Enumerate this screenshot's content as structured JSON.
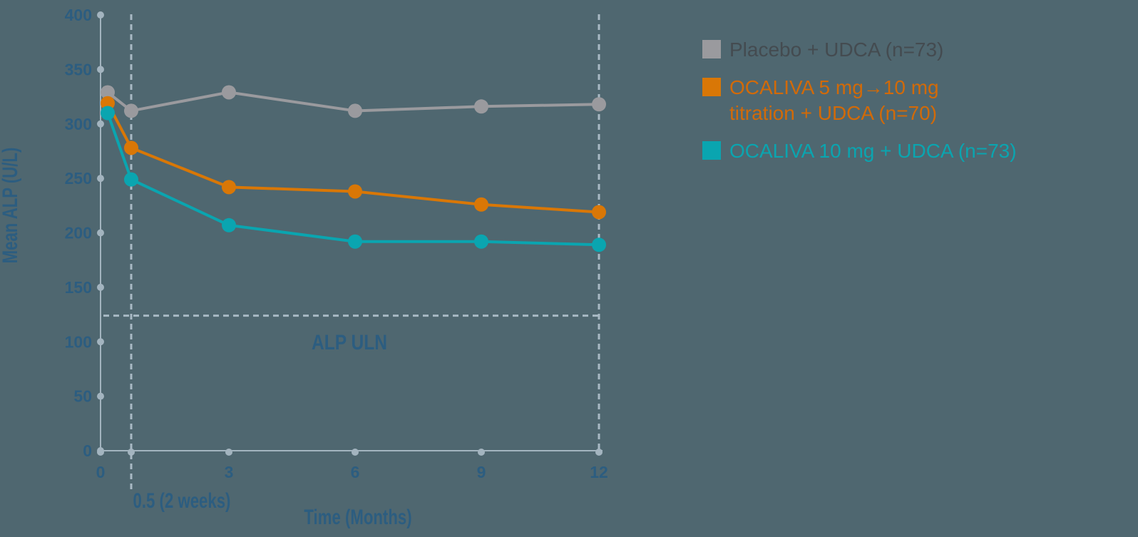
{
  "colors": {
    "background": "#4f6770",
    "axis": "#a3b4bf",
    "tick_text": "#2c5d80",
    "placebo": "#9a9a9e",
    "titration": "#d97706",
    "ten_mg": "#0aa5b0",
    "placebo_text": "#444b50"
  },
  "chart_data": {
    "type": "line",
    "title": "",
    "xlabel": "Time (Months)",
    "ylabel": "Mean ALP (U/L)",
    "ylim": [
      0,
      400
    ],
    "y_ticks": [
      "0",
      "50",
      "100",
      "150",
      "200",
      "250",
      "300",
      "350",
      "400"
    ],
    "x_ticks": [
      "0",
      "3",
      "6",
      "9",
      "12"
    ],
    "x": [
      0.25,
      0.5,
      3,
      6,
      9,
      12
    ],
    "annotations": {
      "week2_label": "0.5 (2 weeks)",
      "uln_label": "ALP ULN",
      "uln_value": 124
    },
    "legend_position": "right",
    "series": [
      {
        "name": "Placebo + UDCA (n=73)",
        "values": [
          329,
          312,
          329,
          312,
          316,
          318
        ]
      },
      {
        "name": "OCALIVA 5 mg→10 mg titration + UDCA (n=70)",
        "values": [
          319,
          278,
          242,
          238,
          226,
          219
        ]
      },
      {
        "name": "OCALIVA 10 mg + UDCA (n=73)",
        "values": [
          310,
          249,
          207,
          192,
          192,
          189
        ]
      }
    ]
  },
  "legend": {
    "items": [
      {
        "line1": "Placebo + UDCA (n=73)",
        "line2": ""
      },
      {
        "line1": "OCALIVA 5 mg→10 mg",
        "line2": "titration + UDCA (n=70)"
      },
      {
        "line1": "OCALIVA 10 mg + UDCA (n=73)",
        "line2": ""
      }
    ]
  }
}
